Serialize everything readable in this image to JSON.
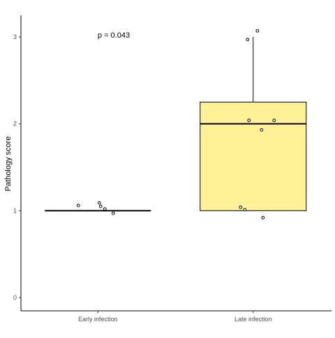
{
  "chart_data": {
    "type": "box",
    "xlabel": "",
    "ylabel": "Pathology score",
    "categories": [
      "Early infection",
      "Late infection"
    ],
    "ylim": [
      -0.15,
      3.25
    ],
    "yticks": [
      0,
      1,
      2,
      3
    ],
    "grid": false,
    "legend": "none",
    "annotation": "p = 0.043",
    "boxes": [
      {
        "category": "Early infection",
        "min": 1,
        "q1": 1,
        "median": 1,
        "q3": 1,
        "max": 1,
        "fill": "#ffffff"
      },
      {
        "category": "Late infection",
        "min": 1,
        "q1": 1,
        "median": 2,
        "q3": 2.25,
        "max": 3,
        "fill": "#fff296"
      }
    ],
    "points": [
      {
        "category": "Early infection",
        "y": 1.06
      },
      {
        "category": "Early infection",
        "y": 1.09
      },
      {
        "category": "Early infection",
        "y": 1.05
      },
      {
        "category": "Early infection",
        "y": 1.02
      },
      {
        "category": "Early infection",
        "y": 0.97
      },
      {
        "category": "Late infection",
        "y": 3.07
      },
      {
        "category": "Late infection",
        "y": 2.97
      },
      {
        "category": "Late infection",
        "y": 2.04
      },
      {
        "category": "Late infection",
        "y": 2.04
      },
      {
        "category": "Late infection",
        "y": 1.93
      },
      {
        "category": "Late infection",
        "y": 1.04
      },
      {
        "category": "Late infection",
        "y": 1.01
      },
      {
        "category": "Late infection",
        "y": 0.92
      }
    ]
  }
}
